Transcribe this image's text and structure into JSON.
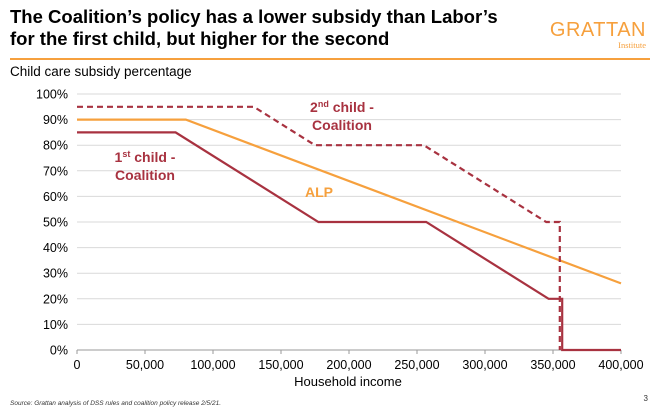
{
  "header": {
    "title_line1": "The Coalition’s policy has a lower subsidy than Labor’s",
    "title_line2": "for the first child, but higher for the second",
    "logo_word": "GRATTAN",
    "logo_sub": "Institute"
  },
  "footer": {
    "source": "Source: Grattan analysis of DSS rules and coalition policy release 2/5/21.",
    "page_number": "3"
  },
  "chart_data": {
    "type": "line",
    "ylabel": "Child care subsidy percentage",
    "xlabel": "Household income",
    "xlim": [
      0,
      400000
    ],
    "ylim": [
      0,
      100
    ],
    "x_ticks": [
      0,
      50000,
      100000,
      150000,
      200000,
      250000,
      300000,
      350000,
      400000
    ],
    "x_tick_labels": [
      "0",
      "50,000",
      "100,000",
      "150,000",
      "200,000",
      "250,000",
      "300,000",
      "350,000",
      "400,000"
    ],
    "y_ticks": [
      0,
      10,
      20,
      30,
      40,
      50,
      60,
      70,
      80,
      90,
      100
    ],
    "y_tick_labels": [
      "0%",
      "10%",
      "20%",
      "30%",
      "40%",
      "50%",
      "60%",
      "70%",
      "80%",
      "90%",
      "100%"
    ],
    "grid": true,
    "series": [
      {
        "name": "ALP",
        "color": "#f6a03d",
        "dash": "solid",
        "x": [
          0,
          80000,
          400000
        ],
        "y": [
          90,
          90,
          26
        ]
      },
      {
        "name": "1st child - Coalition",
        "color": "#a83240",
        "dash": "solid",
        "x": [
          0,
          72466,
          177466,
          256756,
          346756,
          356756,
          356756,
          400000
        ],
        "y": [
          85,
          85,
          50,
          50,
          20,
          20,
          0,
          0
        ]
      },
      {
        "name": "2nd child - Coalition",
        "color": "#a83240",
        "dash": "dashed",
        "x": [
          0,
          130000,
          175000,
          255000,
          345000,
          355000,
          355000
        ],
        "y": [
          95,
          95,
          80,
          80,
          50,
          50,
          0
        ]
      }
    ],
    "annotations": [
      {
        "id": "first",
        "base": "1st",
        "sup": "",
        "line1": "1",
        "sup_text": "st",
        "rest": " child -",
        "line2": "Coalition",
        "color": "#a83240"
      },
      {
        "id": "second",
        "line1": "2",
        "sup_text": "nd",
        "rest": " child -",
        "line2": "Coalition",
        "color": "#a83240"
      },
      {
        "id": "alp",
        "line1": "ALP",
        "color": "#f6a03d"
      }
    ]
  }
}
